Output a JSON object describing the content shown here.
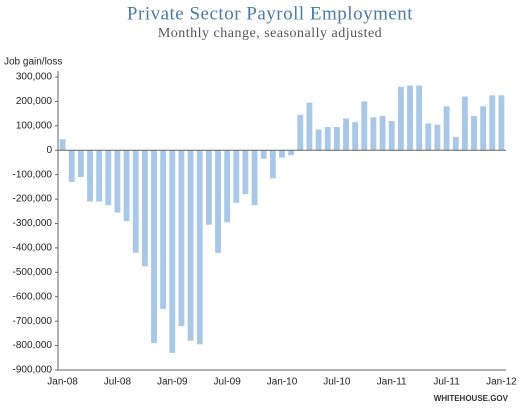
{
  "chart_data": {
    "type": "bar",
    "title": "Private Sector Payroll Employment",
    "subtitle": "Monthly change, seasonally adjusted",
    "y_label": "Job gain/loss",
    "source": "WHITEHOUSE.GOV",
    "color": "#a9c8e8",
    "categories": [
      "Jan-08",
      null,
      null,
      null,
      null,
      null,
      "Jul-08",
      null,
      null,
      null,
      null,
      null,
      "Jan-09",
      null,
      null,
      null,
      null,
      null,
      "Jul-09",
      null,
      null,
      null,
      null,
      null,
      "Jan-10",
      null,
      null,
      null,
      null,
      null,
      "Jul-10",
      null,
      null,
      null,
      null,
      null,
      "Jan-11",
      null,
      null,
      null,
      null,
      null,
      "Jul-11",
      null,
      null,
      null,
      null,
      null,
      "Jan-12"
    ],
    "values": [
      45000,
      -130000,
      -110000,
      -210000,
      -210000,
      -225000,
      -255000,
      -290000,
      -420000,
      -475000,
      -790000,
      -650000,
      -830000,
      -720000,
      -780000,
      -795000,
      -305000,
      -420000,
      -295000,
      -215000,
      -180000,
      -225000,
      -35000,
      -115000,
      -30000,
      -20000,
      145000,
      195000,
      85000,
      95000,
      95000,
      130000,
      115000,
      200000,
      135000,
      140000,
      120000,
      260000,
      265000,
      265000,
      110000,
      105000,
      180000,
      55000,
      220000,
      140000,
      180000,
      225000,
      225000
    ],
    "ylim": [
      -900000,
      300000
    ],
    "yticks": [
      {
        "value": 300000,
        "label": "300,000"
      },
      {
        "value": 200000,
        "label": "200,000"
      },
      {
        "value": 100000,
        "label": "100,000"
      },
      0,
      {
        "value": -100000,
        "label": "-100,000"
      },
      {
        "value": -200000,
        "label": "-200,000"
      },
      {
        "value": -300000,
        "label": "-300,000"
      },
      {
        "value": -400000,
        "label": "-400,000"
      },
      {
        "value": -500000,
        "label": "-500,000"
      },
      {
        "value": -600000,
        "label": "-600,000"
      },
      {
        "value": -700000,
        "label": "-700,000"
      },
      {
        "value": -800000,
        "label": "-800,000"
      },
      {
        "value": -900000,
        "label": "-900,000"
      }
    ]
  }
}
